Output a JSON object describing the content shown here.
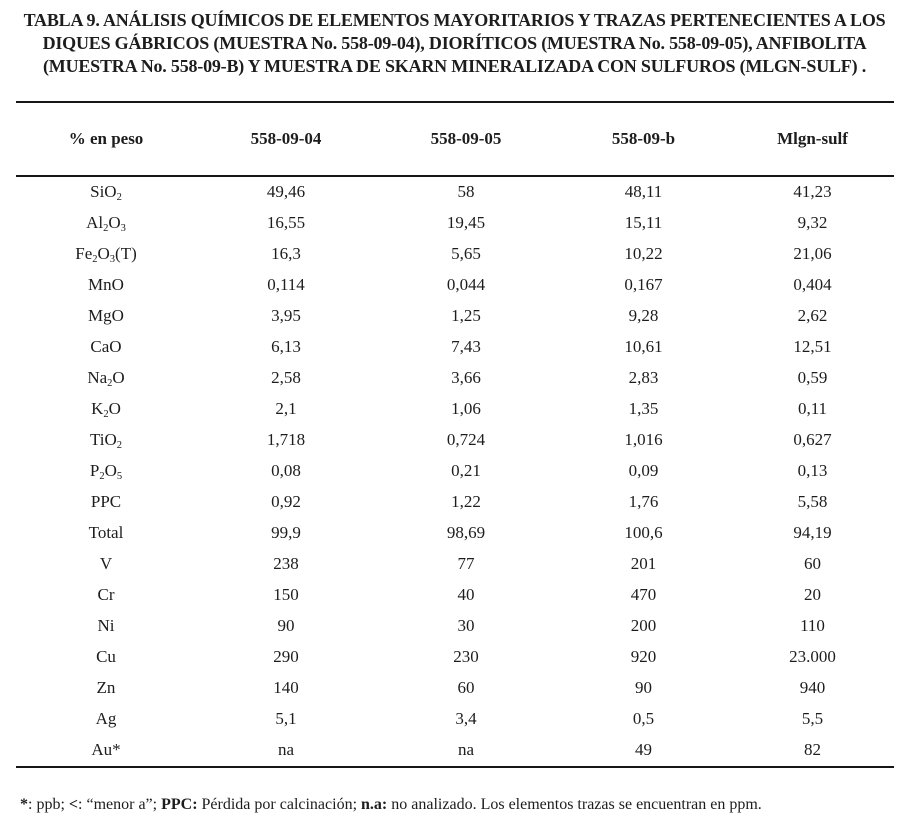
{
  "title": {
    "lines": [
      "TABLA 9. ANÁLISIS QUÍMICOS DE ELEMENTOS MAYORITARIOS Y TRAZAS PERTENECIENTES A LOS",
      "DIQUES GÁBRICOS (MUESTRA No. 558-09-04), DIORÍTICOS (MUESTRA No. 558-09-05), ANFIBOLITA",
      "(MUESTRA No. 558-09-B) Y MUESTRA DE SKARN MINERALIZADA CON SULFUROS (MLGN-SULF) ."
    ]
  },
  "table": {
    "columns": [
      "% en peso",
      "558-09-04",
      "558-09-05",
      "558-09-b",
      "Mlgn-sulf"
    ],
    "rows": [
      {
        "label": "SiO_2",
        "values": [
          "49,46",
          "58",
          "48,11",
          "41,23"
        ]
      },
      {
        "label": "Al_2O_3",
        "values": [
          "16,55",
          "19,45",
          "15,11",
          "9,32"
        ]
      },
      {
        "label": "Fe_2O_3(T)",
        "values": [
          "16,3",
          "5,65",
          "10,22",
          "21,06"
        ]
      },
      {
        "label": "MnO",
        "values": [
          "0,114",
          "0,044",
          "0,167",
          "0,404"
        ]
      },
      {
        "label": "MgO",
        "values": [
          "3,95",
          "1,25",
          "9,28",
          "2,62"
        ]
      },
      {
        "label": "CaO",
        "values": [
          "6,13",
          "7,43",
          "10,61",
          "12,51"
        ]
      },
      {
        "label": "Na_2O",
        "values": [
          "2,58",
          "3,66",
          "2,83",
          "0,59"
        ]
      },
      {
        "label": "K_2O",
        "values": [
          "2,1",
          "1,06",
          "1,35",
          "0,11"
        ]
      },
      {
        "label": "TiO_2",
        "values": [
          "1,718",
          "0,724",
          "1,016",
          "0,627"
        ]
      },
      {
        "label": "P_2O_5",
        "values": [
          "0,08",
          "0,21",
          "0,09",
          "0,13"
        ]
      },
      {
        "label": "PPC",
        "values": [
          "0,92",
          "1,22",
          "1,76",
          "5,58"
        ]
      },
      {
        "label": "Total",
        "values": [
          "99,9",
          "98,69",
          "100,6",
          "94,19"
        ]
      },
      {
        "label": "V",
        "values": [
          "238",
          "77",
          "201",
          "60"
        ]
      },
      {
        "label": "Cr",
        "values": [
          "150",
          "40",
          "470",
          "20"
        ]
      },
      {
        "label": "Ni",
        "values": [
          "90",
          "30",
          "200",
          "110"
        ]
      },
      {
        "label": "Cu",
        "values": [
          "290",
          "230",
          "920",
          "23.000"
        ]
      },
      {
        "label": "Zn",
        "values": [
          "140",
          "60",
          "90",
          "940"
        ]
      },
      {
        "label": "Ag",
        "values": [
          "5,1",
          "3,4",
          "0,5",
          "5,5"
        ]
      },
      {
        "label": "Au*",
        "values": [
          "na",
          "na",
          "49",
          "82"
        ]
      }
    ]
  },
  "footnote": {
    "segments": [
      {
        "text": "*",
        "bold": true
      },
      {
        "text": ": ppb;  ",
        "bold": false
      },
      {
        "text": "<",
        "bold": true
      },
      {
        "text": ": “menor a”; ",
        "bold": false
      },
      {
        "text": "PPC:",
        "bold": true
      },
      {
        "text": " Pérdida por calcinación; ",
        "bold": false
      },
      {
        "text": "n.a:",
        "bold": true
      },
      {
        "text": " no analizado. Los elementos trazas se encuentran en ppm.",
        "bold": false
      }
    ]
  },
  "colors": {
    "text": "#1d1d1d",
    "rule": "#161616",
    "background": "#ffffff"
  }
}
